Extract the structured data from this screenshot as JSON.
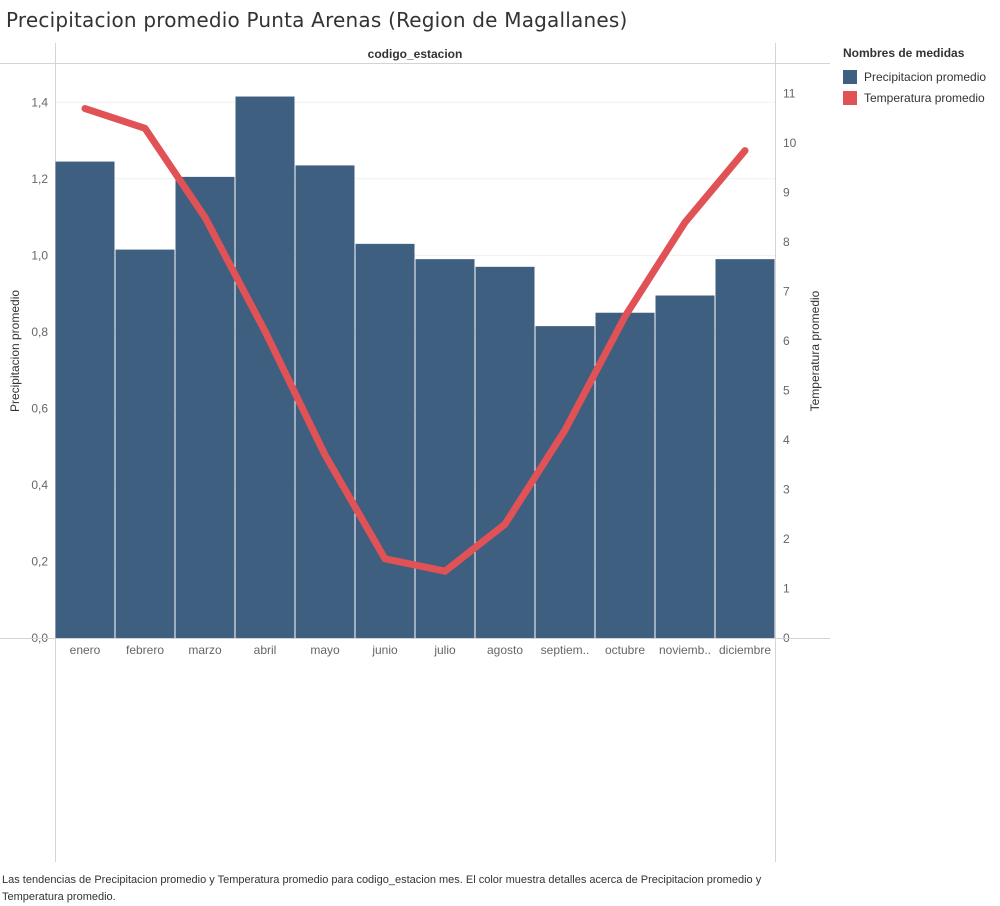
{
  "title": "Precipitacion promedio Punta Arenas (Region de Magallanes)",
  "legend": {
    "title": "Nombres de medidas",
    "items": [
      {
        "label": "Precipitacion promedio",
        "color": "#3f5f80"
      },
      {
        "label": "Temperatura promedio",
        "color": "#e05255"
      }
    ]
  },
  "caption": "Las tendencias de Precipitacion promedio y Temperatura promedio para codigo_estacion mes.  El color muestra detalles acerca de Precipitacion promedio y Temperatura promedio.",
  "chart_data": {
    "type": "bar",
    "column_header": "codigo_estacion",
    "categories": [
      "enero",
      "febrero",
      "marzo",
      "abril",
      "mayo",
      "junio",
      "julio",
      "agosto",
      "septiem..",
      "octubre",
      "noviemb..",
      "diciembre"
    ],
    "series": [
      {
        "name": "Precipitacion promedio",
        "type": "bar",
        "axis": "left",
        "values": [
          1.245,
          1.015,
          1.205,
          1.415,
          1.235,
          1.03,
          0.99,
          0.97,
          0.815,
          0.85,
          0.895,
          0.99
        ]
      },
      {
        "name": "Temperatura promedio",
        "type": "line",
        "axis": "right",
        "values": [
          10.7,
          10.3,
          8.5,
          6.2,
          3.7,
          1.6,
          1.35,
          2.3,
          4.2,
          6.5,
          8.4,
          9.85
        ]
      }
    ],
    "ylabel": "Precipitacion promedio",
    "ylabel_right": "Temperatura promedio",
    "ylim": [
      0,
      1.5
    ],
    "ylim_right": [
      0,
      11.6
    ],
    "yticks": [
      "0,0",
      "0,2",
      "0,4",
      "0,6",
      "0,8",
      "1,0",
      "1,2",
      "1,4"
    ],
    "yticks_right": [
      "0",
      "1",
      "2",
      "3",
      "4",
      "5",
      "6",
      "7",
      "8",
      "9",
      "10",
      "11"
    ],
    "bar_color": "#3f5f80",
    "line_color": "#e05255",
    "grid": true,
    "legend_position": "right"
  }
}
